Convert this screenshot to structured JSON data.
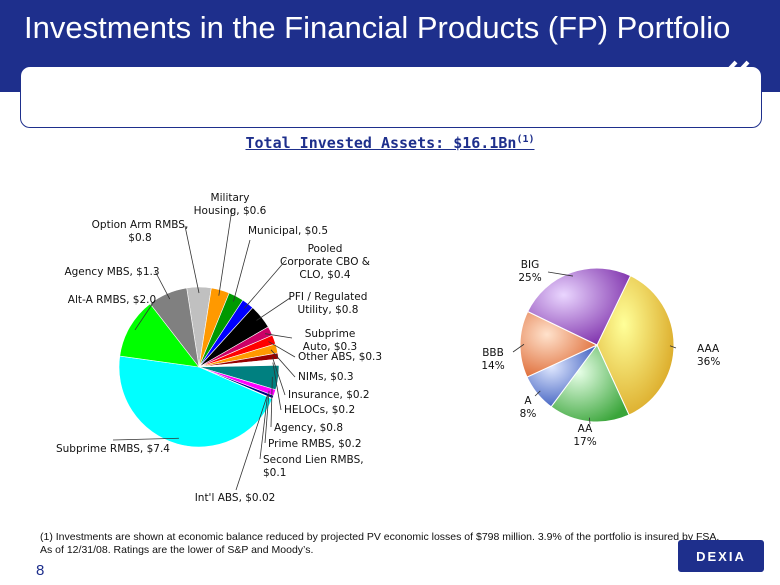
{
  "page": {
    "title": "Investments in the Financial Products (FP) Portfolio",
    "subtitle": "Total Invested Assets: $16.1Bn",
    "subtitle_sup": "(1)",
    "footnote_line1": "(1)    Investments are shown at economic balance reduced by projected PV economic losses of $798 million.  3.9% of the portfolio is insured by FSA.",
    "footnote_line2": "As of 12/31/08. Ratings are the lower of S&P and Moody’s.",
    "page_number": "8",
    "logo_text": "DEXIA"
  },
  "chart_data": [
    {
      "type": "pie",
      "title": "",
      "slices": [
        {
          "label": [
            "Subprime RMBS, $7.4"
          ],
          "value": 7.4,
          "color": "#00ffff"
        },
        {
          "label": [
            "Alt-A RMBS, $2.0"
          ],
          "value": 2.0,
          "color": "#00ff00"
        },
        {
          "label": [
            "Agency MBS, $1.3"
          ],
          "value": 1.3,
          "color": "#808080"
        },
        {
          "label": [
            "Option Arm RMBS,",
            "$0.8"
          ],
          "value": 0.8,
          "color": "#c0c0c0"
        },
        {
          "label": [
            "Military",
            "Housing, $0.6"
          ],
          "value": 0.6,
          "color": "#ff9900"
        },
        {
          "label": [
            "Municipal, $0.5"
          ],
          "value": 0.5,
          "color": "#009900"
        },
        {
          "label": [
            "Pooled",
            "Corporate CBO &",
            "CLO, $0.4"
          ],
          "value": 0.4,
          "color": "#0000ff"
        },
        {
          "label": [
            "PFI / Regulated",
            "Utility, $0.8"
          ],
          "value": 0.8,
          "color": "#000000"
        },
        {
          "label": [
            "Subprime",
            "Auto, $0.3"
          ],
          "value": 0.3,
          "color": "#cc0066"
        },
        {
          "label": [
            "Other ABS, $0.3"
          ],
          "value": 0.3,
          "color": "#ff0000"
        },
        {
          "label": [
            "NIMs, $0.3"
          ],
          "value": 0.3,
          "color": "#ff9900"
        },
        {
          "label": [
            "Insurance, $0.2"
          ],
          "value": 0.2,
          "color": "#990000"
        },
        {
          "label": [
            "HELOCs, $0.2"
          ],
          "value": 0.2,
          "color": "#ffffff"
        },
        {
          "label": [
            "Agency, $0.8"
          ],
          "value": 0.8,
          "color": "#008080"
        },
        {
          "label": [
            "Prime RMBS, $0.2"
          ],
          "value": 0.2,
          "color": "#ff00ff"
        },
        {
          "label": [
            "Second Lien RMBS,",
            "$0.1"
          ],
          "value": 0.1,
          "color": "#000080"
        },
        {
          "label": [
            "Int'l ABS, $0.02"
          ],
          "value": 0.02,
          "color": "#006600"
        }
      ]
    },
    {
      "type": "pie",
      "title": "",
      "slices": [
        {
          "label": [
            "AAA",
            "36%"
          ],
          "value": 36,
          "color": "#f2cc40"
        },
        {
          "label": [
            "AA",
            "17%"
          ],
          "value": 17,
          "color": "#6fcc6f"
        },
        {
          "label": [
            "A",
            "8%"
          ],
          "value": 8,
          "color": "#5577dd"
        },
        {
          "label": [
            "BBB",
            "14%"
          ],
          "value": 14,
          "color": "#ee7744"
        },
        {
          "label": [
            "BIG",
            "25%"
          ],
          "value": 25,
          "color": "#8833bb"
        }
      ]
    }
  ]
}
